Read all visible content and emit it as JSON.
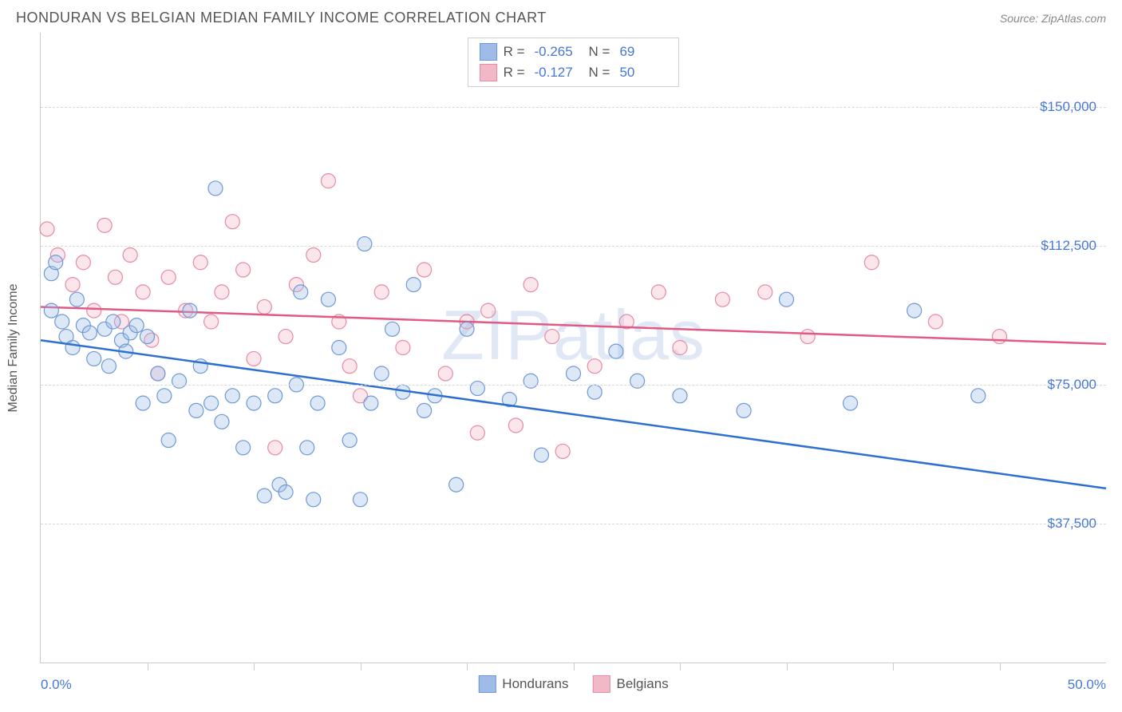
{
  "header": {
    "title": "HONDURAN VS BELGIAN MEDIAN FAMILY INCOME CORRELATION CHART",
    "source": "Source: ZipAtlas.com"
  },
  "watermark": "ZIPatlas",
  "chart": {
    "type": "scatter",
    "y_axis_label": "Median Family Income",
    "xlim": [
      0,
      50
    ],
    "ylim": [
      0,
      170000
    ],
    "x_min_label": "0.0%",
    "x_max_label": "50.0%",
    "y_ticks": [
      37500,
      75000,
      112500,
      150000
    ],
    "y_tick_labels": [
      "$37,500",
      "$75,000",
      "$112,500",
      "$150,000"
    ],
    "x_tick_positions": [
      5,
      10,
      15,
      20,
      25,
      30,
      35,
      40,
      45
    ],
    "background_color": "#ffffff",
    "grid_color": "#d8d8d8",
    "axis_color": "#cccccc",
    "tick_label_color": "#4577d4",
    "tick_label_fontsize": 17,
    "marker_style": "circle",
    "marker_radius": 9,
    "marker_fill_opacity": 0.35,
    "series": {
      "hondurans": {
        "label": "Hondurans",
        "color_fill": "#9fbce8",
        "color_stroke": "#6f98d6",
        "trend_color": "#2f6fd0",
        "trend_width": 2.5,
        "R": "-0.265",
        "N": "69",
        "trend": {
          "y_at_x0": 87000,
          "y_at_x50": 47000
        },
        "points": [
          [
            0.5,
            105000
          ],
          [
            0.5,
            95000
          ],
          [
            0.7,
            108000
          ],
          [
            1.0,
            92000
          ],
          [
            1.2,
            88000
          ],
          [
            1.5,
            85000
          ],
          [
            1.7,
            98000
          ],
          [
            2.0,
            91000
          ],
          [
            2.3,
            89000
          ],
          [
            2.5,
            82000
          ],
          [
            3.0,
            90000
          ],
          [
            3.2,
            80000
          ],
          [
            3.4,
            92000
          ],
          [
            3.8,
            87000
          ],
          [
            4.0,
            84000
          ],
          [
            4.2,
            89000
          ],
          [
            4.5,
            91000
          ],
          [
            4.8,
            70000
          ],
          [
            5.0,
            88000
          ],
          [
            5.5,
            78000
          ],
          [
            5.8,
            72000
          ],
          [
            6.0,
            60000
          ],
          [
            6.5,
            76000
          ],
          [
            7.0,
            95000
          ],
          [
            7.3,
            68000
          ],
          [
            7.5,
            80000
          ],
          [
            8.0,
            70000
          ],
          [
            8.2,
            128000
          ],
          [
            8.5,
            65000
          ],
          [
            9.0,
            72000
          ],
          [
            9.5,
            58000
          ],
          [
            10.0,
            70000
          ],
          [
            10.5,
            45000
          ],
          [
            11.0,
            72000
          ],
          [
            11.2,
            48000
          ],
          [
            11.5,
            46000
          ],
          [
            12.0,
            75000
          ],
          [
            12.2,
            100000
          ],
          [
            12.5,
            58000
          ],
          [
            12.8,
            44000
          ],
          [
            13.0,
            70000
          ],
          [
            13.5,
            98000
          ],
          [
            14.0,
            85000
          ],
          [
            14.5,
            60000
          ],
          [
            15.0,
            44000
          ],
          [
            15.2,
            113000
          ],
          [
            15.5,
            70000
          ],
          [
            16.0,
            78000
          ],
          [
            16.5,
            90000
          ],
          [
            17.0,
            73000
          ],
          [
            17.5,
            102000
          ],
          [
            18.0,
            68000
          ],
          [
            18.5,
            72000
          ],
          [
            19.5,
            48000
          ],
          [
            20.0,
            90000
          ],
          [
            20.5,
            74000
          ],
          [
            22.0,
            71000
          ],
          [
            23.0,
            76000
          ],
          [
            23.5,
            56000
          ],
          [
            25.0,
            78000
          ],
          [
            26.0,
            73000
          ],
          [
            27.0,
            84000
          ],
          [
            28.0,
            76000
          ],
          [
            30.0,
            72000
          ],
          [
            33.0,
            68000
          ],
          [
            35.0,
            98000
          ],
          [
            38.0,
            70000
          ],
          [
            41.0,
            95000
          ],
          [
            44.0,
            72000
          ]
        ]
      },
      "belgians": {
        "label": "Belgians",
        "color_fill": "#f1b8c7",
        "color_stroke": "#e88aa3",
        "trend_color": "#e15a84",
        "trend_width": 2.5,
        "R": "-0.127",
        "N": "50",
        "trend": {
          "y_at_x0": 96000,
          "y_at_x50": 86000
        },
        "points": [
          [
            0.3,
            117000
          ],
          [
            0.8,
            110000
          ],
          [
            1.5,
            102000
          ],
          [
            2.0,
            108000
          ],
          [
            2.5,
            95000
          ],
          [
            3.0,
            118000
          ],
          [
            3.5,
            104000
          ],
          [
            3.8,
            92000
          ],
          [
            4.2,
            110000
          ],
          [
            4.8,
            100000
          ],
          [
            5.2,
            87000
          ],
          [
            5.5,
            78000
          ],
          [
            6.0,
            104000
          ],
          [
            6.8,
            95000
          ],
          [
            7.5,
            108000
          ],
          [
            8.0,
            92000
          ],
          [
            8.5,
            100000
          ],
          [
            9.0,
            119000
          ],
          [
            9.5,
            106000
          ],
          [
            10.0,
            82000
          ],
          [
            10.5,
            96000
          ],
          [
            11.0,
            58000
          ],
          [
            11.5,
            88000
          ],
          [
            12.0,
            102000
          ],
          [
            12.8,
            110000
          ],
          [
            13.5,
            130000
          ],
          [
            14.0,
            92000
          ],
          [
            14.5,
            80000
          ],
          [
            15.0,
            72000
          ],
          [
            16.0,
            100000
          ],
          [
            17.0,
            85000
          ],
          [
            18.0,
            106000
          ],
          [
            19.0,
            78000
          ],
          [
            20.0,
            92000
          ],
          [
            20.5,
            62000
          ],
          [
            21.0,
            95000
          ],
          [
            22.3,
            64000
          ],
          [
            23.0,
            102000
          ],
          [
            24.0,
            88000
          ],
          [
            24.5,
            57000
          ],
          [
            26.0,
            80000
          ],
          [
            27.5,
            92000
          ],
          [
            29.0,
            100000
          ],
          [
            30.0,
            85000
          ],
          [
            32.0,
            98000
          ],
          [
            34.0,
            100000
          ],
          [
            36.0,
            88000
          ],
          [
            39.0,
            108000
          ],
          [
            42.0,
            92000
          ],
          [
            45.0,
            88000
          ]
        ]
      }
    }
  }
}
